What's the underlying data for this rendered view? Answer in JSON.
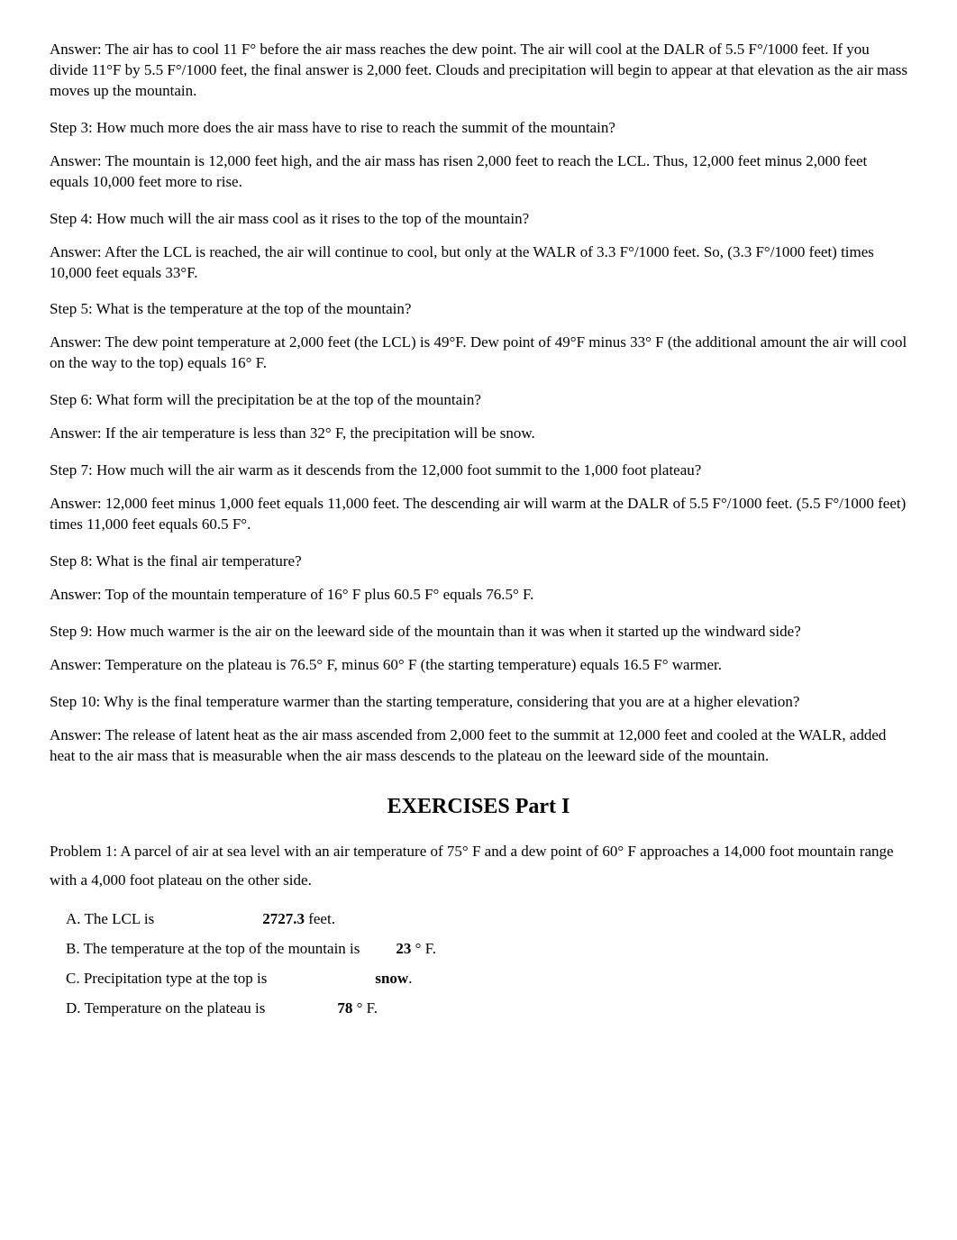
{
  "answer1": {
    "label": "Answer:",
    "text": " The air has to cool 11 F° before the air mass reaches the dew point.  The air will cool at the DALR of 5.5 F°/1000 feet.  If you divide 11°F by 5.5 F°/1000 feet, the final answer is 2,000 feet.  Clouds and precipitation will begin to appear at that elevation as the air mass moves up the mountain."
  },
  "step3": {
    "label": "Step 3:",
    "q": " How much more does the air mass have to rise to reach the summit of the mountain?",
    "ansLabel": "Answer:",
    "ans": " The mountain is 12,000 feet high, and the air mass has risen 2,000 feet to reach the LCL.  Thus, 12,000 feet minus 2,000 feet equals 10,000 feet more to rise."
  },
  "step4": {
    "label": "Step 4:",
    "q": " How much will the air mass cool as it rises to the top of the mountain?",
    "ansLabel": "Answer:",
    "ans": " After the LCL is reached, the air will continue to cool, but only at the WALR of 3.3 F°/1000 feet.  So, (3.3 F°/1000 feet) times 10,000 feet equals 33°F."
  },
  "step5": {
    "label": "Step 5:",
    "q": " What is the temperature at the top of the mountain?",
    "ansLabel": "Answer:",
    "ans": " The dew point temperature at 2,000 feet (the LCL) is 49°F.  Dew point of 49°F minus 33° F (the additional amount the air will cool on the way to the top) equals 16° F."
  },
  "step6": {
    "label": "Step 6:",
    "q": " What form will the precipitation be at the top of the mountain?",
    "ansLabel": "Answer:",
    "ans": " If the air temperature is less than 32° F, the precipitation will be snow."
  },
  "step7": {
    "label": "Step 7:",
    "q": " How much will the air warm as it descends from the 12,000 foot summit to the 1,000 foot plateau?",
    "ansLabel": "Answer:",
    "ans": " 12,000 feet minus 1,000 feet equals 11,000 feet.  The descending air will warm at the DALR of 5.5 F°/1000 feet.  (5.5 F°/1000 feet) times 11,000 feet equals 60.5 F°."
  },
  "step8": {
    "label": "Step 8:",
    "q": " What is the final air temperature?",
    "ansLabel": "Answer:",
    "ans": " Top of the mountain temperature of 16° F plus 60.5 F° equals 76.5° F."
  },
  "step9": {
    "label": "Step 9:",
    "q": " How much warmer is the air on the leeward side of the mountain than it was when it started up the windward side?",
    "ansLabel": "Answer:",
    "ans": " Temperature on the plateau is 76.5° F, minus 60° F (the starting temperature) equals 16.5 F° warmer."
  },
  "step10": {
    "label": "Step 10:",
    "q": " Why is the final temperature warmer than the starting temperature, considering that you are at a higher elevation?",
    "ansLabel": "Answer:",
    "ans": " The release of latent heat as the air mass ascended from 2,000 feet to the summit at 12,000 feet and cooled at the WALR, added heat to the air mass that is measurable when the air mass descends to the plateau on the leeward side of the mountain."
  },
  "exercisesTitle": "EXERCISES Part I",
  "problem1": {
    "label": "Problem 1:",
    "text": "  A parcel of air at sea level with an air temperature of 75° F and a dew point of 60° F approaches a 14,000 foot mountain range with a 4,000 foot plateau on the other side."
  },
  "optA": {
    "text": "A. The LCL is",
    "val": "2727.3",
    "unit": " feet."
  },
  "optB": {
    "text": "B.  The temperature at the top of the mountain is",
    "val": "23",
    "unit": " ° F."
  },
  "optC": {
    "text": "C.  Precipitation type at the top is",
    "val": "snow",
    "unit": "."
  },
  "optD": {
    "text": "D. Temperature on the plateau is",
    "val": "78",
    "unit": " ° F."
  }
}
